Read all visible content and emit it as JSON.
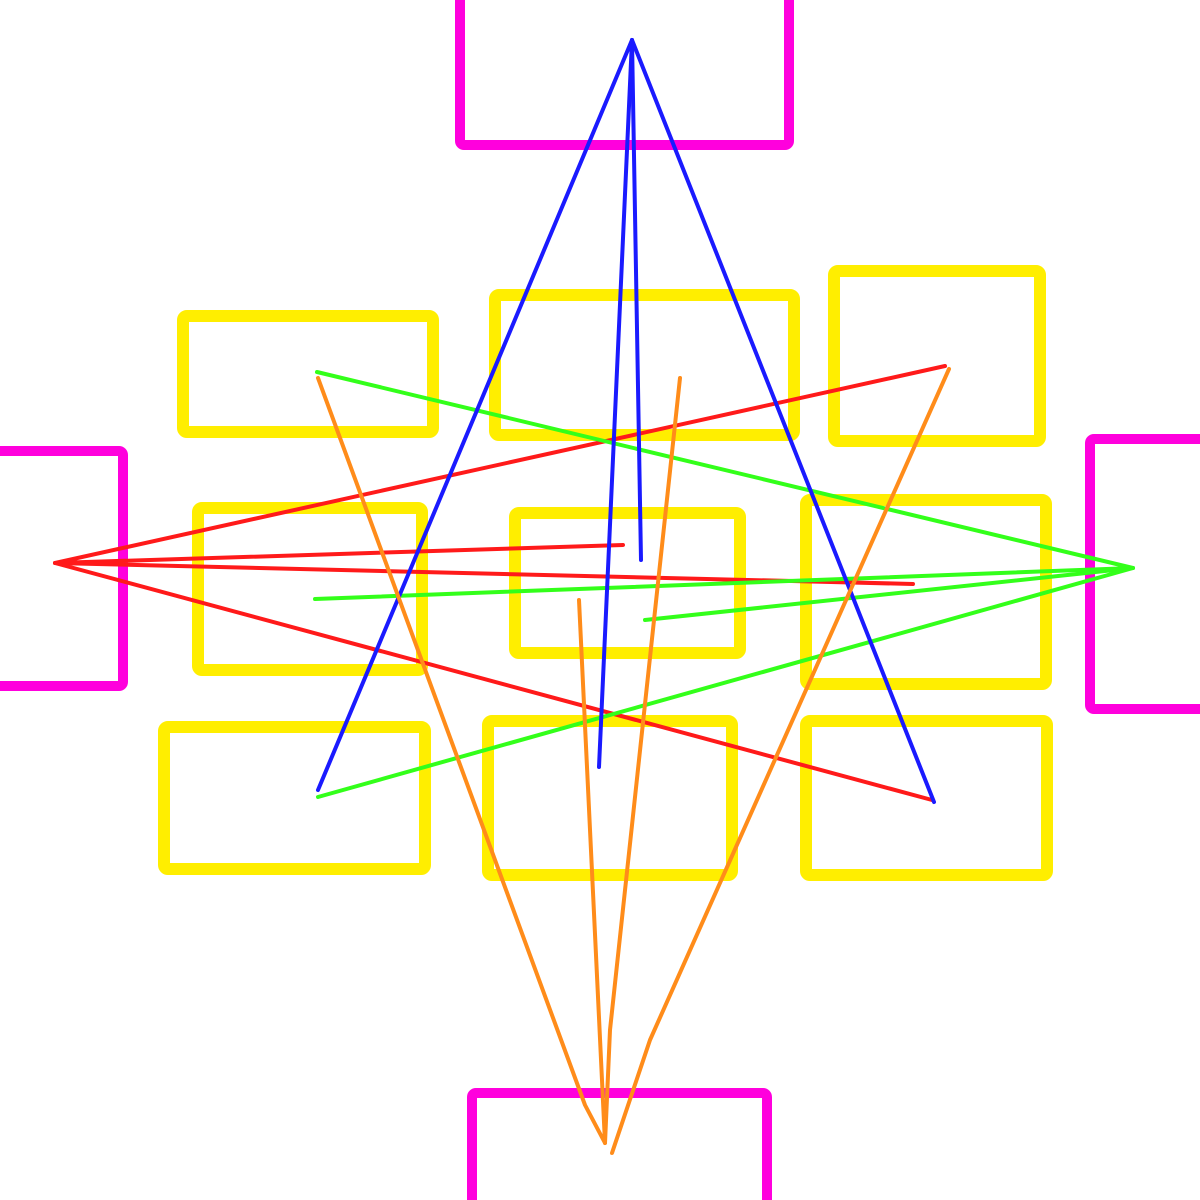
{
  "diagram": {
    "description_free": true,
    "colors": {
      "background": "#ffffff",
      "port_box": "#ff00dd",
      "cell_box": "#ffee00",
      "top_fan": "#1a1aff",
      "left_fan": "#ff1a1a",
      "right_fan": "#33ff1a",
      "bottom_fan": "#ff8c1a"
    },
    "port_boxes": [
      "port-top",
      "port-left",
      "port-right",
      "port-bottom"
    ],
    "cell_boxes": [
      "cell-top-left",
      "cell-top-center",
      "cell-top-right",
      "cell-middle-left",
      "cell-middle-center",
      "cell-middle-right",
      "cell-bottom-left",
      "cell-bottom-center",
      "cell-bottom-right"
    ],
    "fans": [
      "top-fan",
      "left-fan",
      "right-fan",
      "bottom-fan"
    ]
  }
}
